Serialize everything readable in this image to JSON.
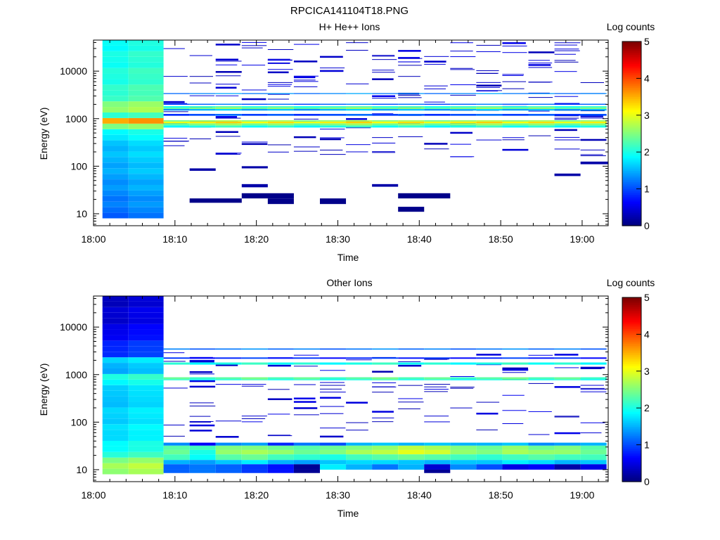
{
  "figure_title": "RPCICA141104T18.PNG",
  "chart_data": [
    {
      "type": "heatmap",
      "title": "H+ He++ Ions",
      "xlabel": "Time",
      "ylabel": "Energy (eV)",
      "x_ticks": [
        "18:00",
        "18:10",
        "18:20",
        "18:30",
        "18:40",
        "18:50",
        "19:00"
      ],
      "x_tick_values": [
        0,
        10,
        20,
        30,
        40,
        50,
        60
      ],
      "x_range_minutes": [
        0,
        63.2
      ],
      "y_scale": "log",
      "y_range": [
        5.6,
        45000
      ],
      "y_ticks": [
        "10",
        "100",
        "1000",
        "10000"
      ],
      "y_tick_values": [
        10,
        100,
        1000,
        10000
      ],
      "colorbar": {
        "label": "Log counts",
        "range": [
          0,
          5
        ],
        "ticks": [
          "0",
          "1",
          "2",
          "3",
          "4",
          "5"
        ]
      },
      "full_coverage": {
        "x_ranges": [
          [
            1.1,
            4.3
          ],
          [
            4.3,
            8.6
          ]
        ],
        "e_range": [
          8,
          45000
        ],
        "profile": [
          [
            8,
            1.1
          ],
          [
            15,
            1.2
          ],
          [
            40,
            1.35
          ],
          [
            120,
            1.5
          ],
          [
            350,
            1.6
          ],
          [
            650,
            2.1
          ],
          [
            780,
            3.4
          ],
          [
            880,
            3.7
          ],
          [
            980,
            2.6
          ],
          [
            1200,
            2.1
          ],
          [
            1500,
            2.4
          ],
          [
            1700,
            3.3
          ],
          [
            1900,
            2.5
          ],
          [
            3000,
            2.1
          ],
          [
            10000,
            2.0
          ],
          [
            45000,
            1.9
          ]
        ]
      },
      "bands": [
        {
          "e_low": 650,
          "e_high": 720,
          "value": 2.0
        },
        {
          "e_low": 720,
          "e_high": 800,
          "value": 2.5
        },
        {
          "e_low": 800,
          "e_high": 870,
          "value": 3.2
        },
        {
          "e_low": 870,
          "e_high": 930,
          "value": 2.6
        },
        {
          "e_low": 1150,
          "e_high": 1260,
          "value": 1.0
        },
        {
          "e_low": 1480,
          "e_high": 1600,
          "value": 1.5
        },
        {
          "e_low": 1600,
          "e_high": 1720,
          "value": 2.5
        },
        {
          "e_low": 1720,
          "e_high": 1830,
          "value": 2.1
        },
        {
          "e_low": 1960,
          "e_high": 2060,
          "value": 1.1
        },
        {
          "e_low": 3300,
          "e_high": 3450,
          "value": 1.3
        }
      ],
      "sparse_value": 0.25,
      "sparse_seed": 17,
      "sparse_x_range": [
        8.6,
        63.2
      ],
      "sparse_e_range": [
        150,
        40000
      ],
      "sparse_count": 210,
      "blocks": [
        {
          "x": [
            11.8,
            18.2
          ],
          "e": [
            17,
            21
          ],
          "value": 0.05
        },
        {
          "x": [
            18.2,
            24.6
          ],
          "e": [
            21,
            27
          ],
          "value": 0.05
        },
        {
          "x": [
            21.4,
            24.6
          ],
          "e": [
            16,
            21
          ],
          "value": 0.05
        },
        {
          "x": [
            27.8,
            31.0
          ],
          "e": [
            16,
            21
          ],
          "value": 0.05
        },
        {
          "x": [
            37.4,
            43.8
          ],
          "e": [
            21,
            27
          ],
          "value": 0.05
        },
        {
          "x": [
            37.4,
            40.6
          ],
          "e": [
            11,
            14
          ],
          "value": 0.05
        },
        {
          "x": [
            18.2,
            21.4
          ],
          "e": [
            36,
            42
          ],
          "value": 0.2
        },
        {
          "x": [
            11.8,
            15.0
          ],
          "e": [
            80,
            90
          ],
          "value": 0.2
        },
        {
          "x": [
            18.2,
            21.4
          ],
          "e": [
            90,
            100
          ],
          "value": 0.2
        },
        {
          "x": [
            34.2,
            37.4
          ],
          "e": [
            37,
            42
          ],
          "value": 0.2
        },
        {
          "x": [
            59.8,
            63.2
          ],
          "e": [
            110,
            125
          ],
          "value": 0.2
        },
        {
          "x": [
            56.6,
            59.8
          ],
          "e": [
            62,
            70
          ],
          "value": 0.2
        }
      ]
    },
    {
      "type": "heatmap",
      "title": "Other Ions",
      "xlabel": "Time",
      "ylabel": "Energy (eV)",
      "x_ticks": [
        "18:00",
        "18:10",
        "18:20",
        "18:30",
        "18:40",
        "18:50",
        "19:00"
      ],
      "x_tick_values": [
        0,
        10,
        20,
        30,
        40,
        50,
        60
      ],
      "x_range_minutes": [
        0,
        63.2
      ],
      "y_scale": "log",
      "y_range": [
        5.6,
        45000
      ],
      "y_ticks": [
        "10",
        "100",
        "1000",
        "10000"
      ],
      "y_tick_values": [
        10,
        100,
        1000,
        10000
      ],
      "colorbar": {
        "label": "Log counts",
        "range": [
          0,
          5
        ],
        "ticks": [
          "0",
          "1",
          "2",
          "3",
          "4",
          "5"
        ]
      },
      "full_coverage": {
        "x_ranges": [
          [
            1.1,
            4.3
          ],
          [
            4.3,
            8.6
          ]
        ],
        "e_range": [
          8,
          45000
        ],
        "profile": [
          [
            8,
            2.6
          ],
          [
            12,
            2.7
          ],
          [
            16,
            2.4
          ],
          [
            25,
            1.9
          ],
          [
            60,
            1.7
          ],
          [
            150,
            1.65
          ],
          [
            400,
            1.55
          ],
          [
            750,
            1.9
          ],
          [
            850,
            2.2
          ],
          [
            1000,
            1.5
          ],
          [
            1600,
            1.5
          ],
          [
            1800,
            2.0
          ],
          [
            2500,
            0.9
          ],
          [
            5000,
            0.7
          ],
          [
            10000,
            0.45
          ],
          [
            45000,
            0.3
          ]
        ]
      },
      "bands": [
        {
          "e_low": 760,
          "e_high": 800,
          "value": 2.0
        },
        {
          "e_low": 800,
          "e_high": 880,
          "value": 2.3
        },
        {
          "e_low": 1620,
          "e_high": 1800,
          "value": 2.0
        },
        {
          "e_low": 2150,
          "e_high": 2300,
          "value": 0.8
        },
        {
          "e_low": 3350,
          "e_high": 3550,
          "value": 1.2
        }
      ],
      "sparse_value": 0.25,
      "sparse_seed": 29,
      "sparse_x_range": [
        8.6,
        63.2
      ],
      "sparse_e_range": [
        45,
        3300
      ],
      "sparse_count": 120,
      "low_energy_rows": [
        {
          "e": [
            32,
            37
          ],
          "values": [
            1.3,
            0.6,
            1.3,
            1.4,
            0.8,
            1.2,
            1.0,
            1.5,
            1.6,
            1.5,
            1.6,
            1.5,
            1.5,
            1.6,
            1.3,
            1.4,
            1.5
          ]
        },
        {
          "e": [
            26,
            32
          ],
          "values": [
            2.3,
            2.2,
            2.5,
            2.5,
            2.4,
            2.3,
            2.4,
            2.5,
            2.6,
            2.8,
            2.7,
            2.5,
            2.4,
            2.6,
            2.4,
            2.5,
            2.3
          ]
        },
        {
          "e": [
            21,
            26
          ],
          "values": [
            2.4,
            2.0,
            2.6,
            2.7,
            2.6,
            2.4,
            2.5,
            2.7,
            2.8,
            3.0,
            2.9,
            2.6,
            2.5,
            2.7,
            2.6,
            2.6,
            2.4
          ]
        },
        {
          "e": [
            16,
            21
          ],
          "values": [
            2.2,
            1.9,
            2.3,
            2.4,
            2.2,
            2.1,
            2.0,
            2.2,
            2.3,
            2.4,
            2.3,
            2.2,
            2.1,
            2.2,
            2.3,
            2.2,
            2.2
          ]
        },
        {
          "e": [
            13,
            16
          ],
          "values": [
            1.5,
            1.4,
            1.6,
            1.8,
            1.5,
            1.4,
            1.6,
            1.7,
            1.7,
            1.6,
            1.5,
            1.6,
            1.6,
            1.8,
            1.7,
            1.5,
            1.6
          ]
        },
        {
          "e": [
            10,
            13
          ],
          "values": [
            1.1,
            1.2,
            1.1,
            0.9,
            0.7,
            0.1,
            1.8,
            1.5,
            1.2,
            1.5,
            0.4,
            1.3,
            1.0,
            0.5,
            0.6,
            0.2,
            0.5
          ]
        },
        {
          "e": [
            8.5,
            10
          ],
          "values": [
            1.1,
            1.2,
            1.1,
            0.9,
            0.7,
            0.1,
            0,
            0,
            0,
            0,
            0.1,
            0,
            0,
            0,
            0,
            0,
            0
          ]
        }
      ]
    }
  ]
}
